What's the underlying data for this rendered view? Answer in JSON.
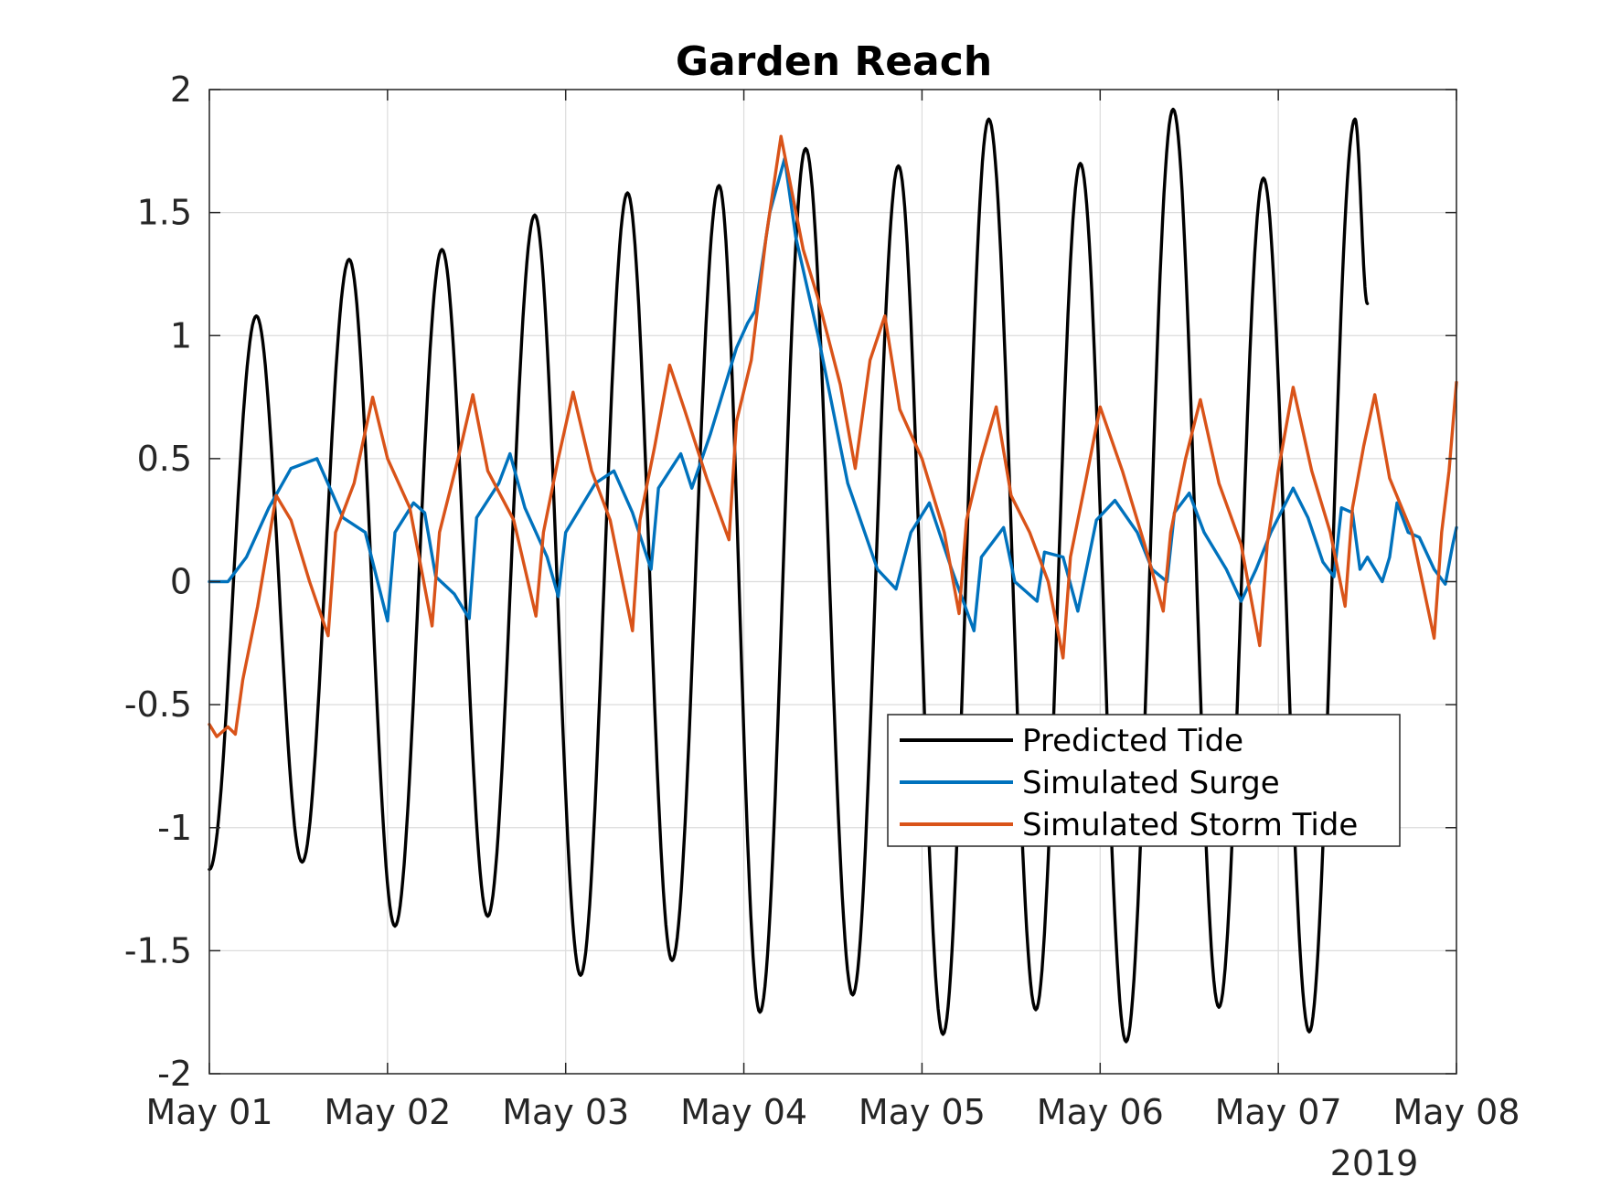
{
  "chart_data": {
    "type": "line",
    "title": "Garden Reach",
    "xlabel": "",
    "ylabel": "",
    "x_secondary_label": "2019",
    "x_tick_labels": [
      "May 01",
      "May 02",
      "May 03",
      "May 04",
      "May 05",
      "May 06",
      "May 07",
      "May 08"
    ],
    "x_tick_dates": [
      "2019-05-01",
      "2019-05-02",
      "2019-05-03",
      "2019-05-04",
      "2019-05-05",
      "2019-05-06",
      "2019-05-07",
      "2019-05-08"
    ],
    "xlim": [
      "2019-05-01 00:00",
      "2019-05-08 00:00"
    ],
    "y_ticks": [
      2,
      1.5,
      1,
      0.5,
      0,
      -0.5,
      -1,
      -1.5,
      -2
    ],
    "y_tick_labels": [
      "2",
      "1.5",
      "1",
      "0.5",
      "0",
      "-0.5",
      "-1",
      "-1.5",
      "-2"
    ],
    "ylim": [
      -2,
      2
    ],
    "grid": true,
    "legend": {
      "position": "lower-right",
      "entries": [
        "Predicted Tide",
        "Simulated Surge",
        "Simulated Storm Tide"
      ]
    },
    "series": [
      {
        "name": "Predicted Tide",
        "color": "#000000",
        "points": [
          [
            "2019-05-01 00:00",
            -1.17
          ],
          [
            "2019-05-01 06:20",
            1.08
          ],
          [
            "2019-05-01 12:30",
            -1.14
          ],
          [
            "2019-05-01 18:50",
            1.31
          ],
          [
            "2019-05-02 01:00",
            -1.4
          ],
          [
            "2019-05-02 07:20",
            1.35
          ],
          [
            "2019-05-02 13:30",
            -1.36
          ],
          [
            "2019-05-02 19:50",
            1.49
          ],
          [
            "2019-05-03 02:00",
            -1.6
          ],
          [
            "2019-05-03 08:20",
            1.58
          ],
          [
            "2019-05-03 14:20",
            -1.54
          ],
          [
            "2019-05-03 20:40",
            1.61
          ],
          [
            "2019-05-04 02:10",
            -1.75
          ],
          [
            "2019-05-04 08:20",
            1.76
          ],
          [
            "2019-05-04 14:40",
            -1.68
          ],
          [
            "2019-05-04 20:50",
            1.69
          ],
          [
            "2019-05-05 02:50",
            -1.84
          ],
          [
            "2019-05-05 09:00",
            1.88
          ],
          [
            "2019-05-05 15:20",
            -1.74
          ],
          [
            "2019-05-05 21:20",
            1.7
          ],
          [
            "2019-05-06 03:30",
            -1.87
          ],
          [
            "2019-05-06 09:50",
            1.92
          ],
          [
            "2019-05-06 16:00",
            -1.73
          ],
          [
            "2019-05-06 22:00",
            1.64
          ],
          [
            "2019-05-07 04:10",
            -1.83
          ],
          [
            "2019-05-07 10:20",
            1.88
          ],
          [
            "2019-05-07 12:00",
            1.13
          ]
        ]
      },
      {
        "name": "Simulated Surge",
        "color": "#0072BD",
        "points": [
          [
            "2019-05-01 00:00",
            0.0
          ],
          [
            "2019-05-01 02:30",
            0.0
          ],
          [
            "2019-05-01 05:00",
            0.1
          ],
          [
            "2019-05-01 08:00",
            0.3
          ],
          [
            "2019-05-01 11:00",
            0.46
          ],
          [
            "2019-05-01 14:30",
            0.5
          ],
          [
            "2019-05-01 18:00",
            0.26
          ],
          [
            "2019-05-01 21:00",
            0.2
          ],
          [
            "2019-05-02 00:00",
            -0.16
          ],
          [
            "2019-05-02 01:00",
            0.2
          ],
          [
            "2019-05-02 03:30",
            0.32
          ],
          [
            "2019-05-02 05:00",
            0.28
          ],
          [
            "2019-05-02 06:30",
            0.02
          ],
          [
            "2019-05-02 09:00",
            -0.05
          ],
          [
            "2019-05-02 11:00",
            -0.15
          ],
          [
            "2019-05-02 12:00",
            0.26
          ],
          [
            "2019-05-02 15:00",
            0.4
          ],
          [
            "2019-05-02 16:30",
            0.52
          ],
          [
            "2019-05-02 18:30",
            0.3
          ],
          [
            "2019-05-02 21:30",
            0.1
          ],
          [
            "2019-05-02 23:00",
            -0.06
          ],
          [
            "2019-05-03 00:00",
            0.2
          ],
          [
            "2019-05-03 04:00",
            0.4
          ],
          [
            "2019-05-03 06:30",
            0.45
          ],
          [
            "2019-05-03 09:00",
            0.28
          ],
          [
            "2019-05-03 11:30",
            0.05
          ],
          [
            "2019-05-03 12:30",
            0.38
          ],
          [
            "2019-05-03 15:30",
            0.52
          ],
          [
            "2019-05-03 17:00",
            0.38
          ],
          [
            "2019-05-03 19:30",
            0.6
          ],
          [
            "2019-05-03 23:00",
            0.95
          ],
          [
            "2019-05-04 00:30",
            1.05
          ],
          [
            "2019-05-04 01:30",
            1.1
          ],
          [
            "2019-05-04 03:30",
            1.5
          ],
          [
            "2019-05-04 05:30",
            1.72
          ],
          [
            "2019-05-04 07:00",
            1.4
          ],
          [
            "2019-05-04 10:00",
            1.0
          ],
          [
            "2019-05-04 14:00",
            0.4
          ],
          [
            "2019-05-04 18:00",
            0.05
          ],
          [
            "2019-05-04 20:30",
            -0.03
          ],
          [
            "2019-05-04 22:30",
            0.2
          ],
          [
            "2019-05-05 01:00",
            0.32
          ],
          [
            "2019-05-05 04:00",
            0.05
          ],
          [
            "2019-05-05 07:00",
            -0.2
          ],
          [
            "2019-05-05 08:00",
            0.1
          ],
          [
            "2019-05-05 11:00",
            0.22
          ],
          [
            "2019-05-05 12:30",
            0.0
          ],
          [
            "2019-05-05 15:30",
            -0.08
          ],
          [
            "2019-05-05 16:30",
            0.12
          ],
          [
            "2019-05-05 19:00",
            0.1
          ],
          [
            "2019-05-05 21:00",
            -0.12
          ],
          [
            "2019-05-05 23:30",
            0.25
          ],
          [
            "2019-05-06 02:00",
            0.33
          ],
          [
            "2019-05-06 05:00",
            0.2
          ],
          [
            "2019-05-06 07:00",
            0.05
          ],
          [
            "2019-05-06 09:00",
            0.0
          ],
          [
            "2019-05-06 10:00",
            0.28
          ],
          [
            "2019-05-06 12:00",
            0.36
          ],
          [
            "2019-05-06 14:00",
            0.2
          ],
          [
            "2019-05-06 17:00",
            0.05
          ],
          [
            "2019-05-06 19:00",
            -0.08
          ],
          [
            "2019-05-06 21:00",
            0.05
          ],
          [
            "2019-05-06 23:00",
            0.2
          ],
          [
            "2019-05-07 02:00",
            0.38
          ],
          [
            "2019-05-07 04:00",
            0.26
          ],
          [
            "2019-05-07 06:00",
            0.08
          ],
          [
            "2019-05-07 07:30",
            0.02
          ],
          [
            "2019-05-07 08:30",
            0.3
          ],
          [
            "2019-05-07 10:00",
            0.28
          ],
          [
            "2019-05-07 11:00",
            0.05
          ],
          [
            "2019-05-07 12:00",
            0.1
          ],
          [
            "2019-05-07 13:00",
            0.05
          ],
          [
            "2019-05-07 14:00",
            0.0
          ],
          [
            "2019-05-07 15:00",
            0.1
          ],
          [
            "2019-05-07 16:00",
            0.32
          ],
          [
            "2019-05-07 17:30",
            0.2
          ],
          [
            "2019-05-07 19:00",
            0.18
          ],
          [
            "2019-05-07 21:00",
            0.05
          ],
          [
            "2019-05-07 22:30",
            -0.01
          ],
          [
            "2019-05-07 23:30",
            0.15
          ],
          [
            "2019-05-08 00:00",
            0.22
          ]
        ]
      },
      {
        "name": "Simulated Storm Tide",
        "color": "#D95319",
        "points": [
          [
            "2019-05-01 00:00",
            -0.58
          ],
          [
            "2019-05-01 01:00",
            -0.63
          ],
          [
            "2019-05-01 02:30",
            -0.59
          ],
          [
            "2019-05-01 03:30",
            -0.62
          ],
          [
            "2019-05-01 04:30",
            -0.4
          ],
          [
            "2019-05-01 06:30",
            -0.1
          ],
          [
            "2019-05-01 09:00",
            0.35
          ],
          [
            "2019-05-01 11:00",
            0.25
          ],
          [
            "2019-05-01 13:30",
            0.0
          ],
          [
            "2019-05-01 16:00",
            -0.22
          ],
          [
            "2019-05-01 17:00",
            0.2
          ],
          [
            "2019-05-01 19:30",
            0.4
          ],
          [
            "2019-05-01 22:00",
            0.75
          ],
          [
            "2019-05-02 00:00",
            0.5
          ],
          [
            "2019-05-02 03:00",
            0.3
          ],
          [
            "2019-05-02 06:00",
            -0.18
          ],
          [
            "2019-05-02 07:00",
            0.2
          ],
          [
            "2019-05-02 09:30",
            0.5
          ],
          [
            "2019-05-02 11:30",
            0.76
          ],
          [
            "2019-05-02 13:30",
            0.45
          ],
          [
            "2019-05-02 17:00",
            0.25
          ],
          [
            "2019-05-02 20:00",
            -0.14
          ],
          [
            "2019-05-02 21:00",
            0.2
          ],
          [
            "2019-05-02 23:00",
            0.5
          ],
          [
            "2019-05-03 01:00",
            0.77
          ],
          [
            "2019-05-03 03:30",
            0.45
          ],
          [
            "2019-05-03 06:00",
            0.25
          ],
          [
            "2019-05-03 09:00",
            -0.2
          ],
          [
            "2019-05-03 10:00",
            0.25
          ],
          [
            "2019-05-03 12:00",
            0.55
          ],
          [
            "2019-05-03 14:00",
            0.88
          ],
          [
            "2019-05-03 16:00",
            0.7
          ],
          [
            "2019-05-03 19:00",
            0.42
          ],
          [
            "2019-05-03 22:00",
            0.17
          ],
          [
            "2019-05-03 23:00",
            0.65
          ],
          [
            "2019-05-04 01:00",
            0.9
          ],
          [
            "2019-05-04 03:00",
            1.4
          ],
          [
            "2019-05-04 05:00",
            1.81
          ],
          [
            "2019-05-04 08:00",
            1.35
          ],
          [
            "2019-05-04 10:00",
            1.15
          ],
          [
            "2019-05-04 13:00",
            0.8
          ],
          [
            "2019-05-04 15:00",
            0.46
          ],
          [
            "2019-05-04 17:00",
            0.9
          ],
          [
            "2019-05-04 19:00",
            1.08
          ],
          [
            "2019-05-04 21:00",
            0.7
          ],
          [
            "2019-05-05 00:00",
            0.5
          ],
          [
            "2019-05-05 03:00",
            0.2
          ],
          [
            "2019-05-05 05:00",
            -0.13
          ],
          [
            "2019-05-05 06:00",
            0.25
          ],
          [
            "2019-05-05 08:00",
            0.5
          ],
          [
            "2019-05-05 10:00",
            0.71
          ],
          [
            "2019-05-05 12:00",
            0.35
          ],
          [
            "2019-05-05 14:30",
            0.2
          ],
          [
            "2019-05-05 17:00",
            0.0
          ],
          [
            "2019-05-05 19:00",
            -0.31
          ],
          [
            "2019-05-05 20:00",
            0.1
          ],
          [
            "2019-05-05 22:00",
            0.4
          ],
          [
            "2019-05-06 00:00",
            0.71
          ],
          [
            "2019-05-06 03:00",
            0.45
          ],
          [
            "2019-05-06 06:00",
            0.15
          ],
          [
            "2019-05-06 08:30",
            -0.12
          ],
          [
            "2019-05-06 09:30",
            0.2
          ],
          [
            "2019-05-06 11:30",
            0.5
          ],
          [
            "2019-05-06 13:30",
            0.74
          ],
          [
            "2019-05-06 16:00",
            0.4
          ],
          [
            "2019-05-06 19:00",
            0.15
          ],
          [
            "2019-05-06 21:30",
            -0.26
          ],
          [
            "2019-05-06 22:30",
            0.15
          ],
          [
            "2019-05-07 00:00",
            0.45
          ],
          [
            "2019-05-07 02:00",
            0.79
          ],
          [
            "2019-05-07 04:30",
            0.45
          ],
          [
            "2019-05-07 07:00",
            0.2
          ],
          [
            "2019-05-07 09:00",
            -0.1
          ],
          [
            "2019-05-07 10:00",
            0.3
          ],
          [
            "2019-05-07 11:30",
            0.55
          ],
          [
            "2019-05-07 13:00",
            0.76
          ],
          [
            "2019-05-07 15:00",
            0.42
          ],
          [
            "2019-05-07 18:00",
            0.2
          ],
          [
            "2019-05-07 21:00",
            -0.23
          ],
          [
            "2019-05-07 22:00",
            0.2
          ],
          [
            "2019-05-07 23:00",
            0.45
          ],
          [
            "2019-05-08 00:00",
            0.81
          ]
        ]
      }
    ]
  }
}
